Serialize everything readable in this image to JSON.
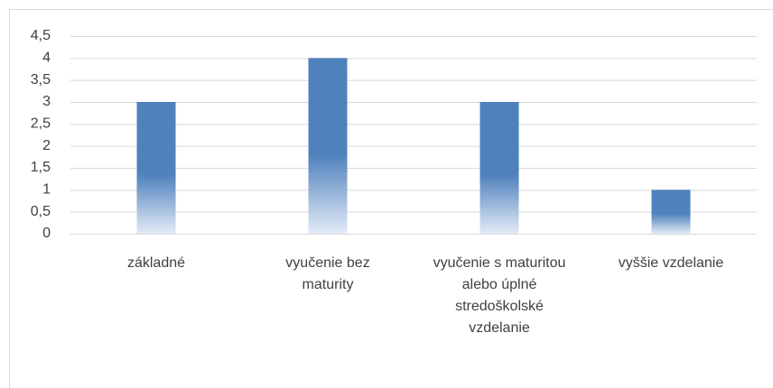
{
  "chart_data": {
    "type": "bar",
    "categories": [
      "základné",
      "vyučenie bez maturity",
      "vyučenie s maturitou alebo úplné stredoškolské vzdelanie",
      "vyššie vzdelanie"
    ],
    "values": [
      3,
      4,
      3,
      1
    ],
    "color": "#4f81bd",
    "ylim": [
      0,
      4.5
    ],
    "yticks": [
      0,
      {
        "value": 0.5,
        "label": "0,5"
      },
      1,
      {
        "value": 1.5,
        "label": "1,5"
      },
      2,
      {
        "value": 2.5,
        "label": "2,5"
      },
      3,
      {
        "value": 3.5,
        "label": "3,5"
      },
      4,
      {
        "value": 4.5,
        "label": "4,5"
      }
    ],
    "grid": true
  }
}
